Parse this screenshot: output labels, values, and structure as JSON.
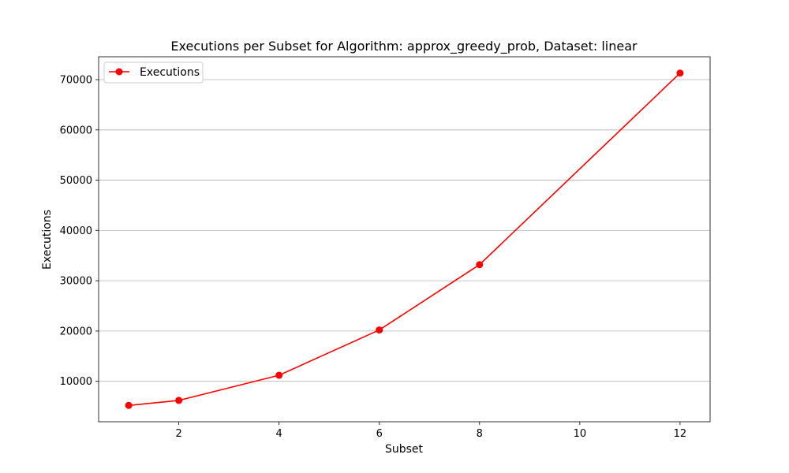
{
  "chart_data": {
    "type": "line",
    "title": "Executions per Subset for Algorithm: approx_greedy_prob, Dataset: linear",
    "xlabel": "Subset",
    "ylabel": "Executions",
    "xlim": [
      0.4,
      12.6
    ],
    "ylim": [
      1950,
      74550
    ],
    "xticks": [
      2,
      4,
      6,
      8,
      10,
      12
    ],
    "yticks": [
      10000,
      20000,
      30000,
      40000,
      50000,
      60000,
      70000
    ],
    "grid": "y-axis",
    "legend_position": "top-left",
    "series": [
      {
        "name": "Executions",
        "color": "#ff0000",
        "marker": "circle",
        "x": [
          1,
          2,
          4,
          6,
          8,
          12
        ],
        "y": [
          5200,
          6200,
          11200,
          20200,
          33200,
          71300
        ]
      }
    ]
  }
}
